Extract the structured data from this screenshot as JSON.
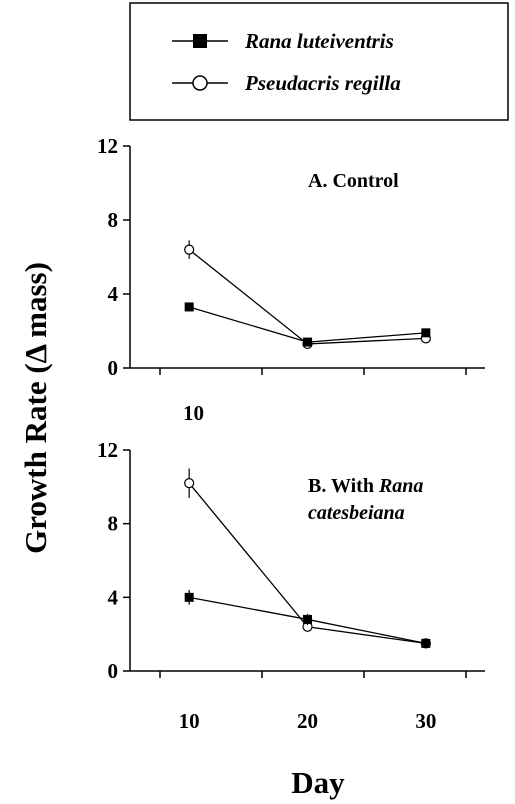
{
  "chart_data": [
    {
      "type": "line",
      "panel": "A",
      "title": "A. Control",
      "title_parts": [
        "A. Control"
      ],
      "x": [
        10,
        20,
        30
      ],
      "xlim": [
        5,
        35
      ],
      "ylim": [
        0,
        12
      ],
      "yticks": [
        "0",
        "4",
        "8",
        "12"
      ],
      "series": [
        {
          "name": "Rana luteiventris",
          "marker": "filled-square",
          "values": [
            3.3,
            1.4,
            1.9
          ],
          "errors": [
            0.2,
            0.1,
            0.1
          ]
        },
        {
          "name": "Pseudacris regilla",
          "marker": "open-circle",
          "values": [
            6.4,
            1.3,
            1.6
          ],
          "errors": [
            0.5,
            0.1,
            0.1
          ]
        }
      ]
    },
    {
      "type": "line",
      "panel": "B",
      "title": "B. With Rana catesbeiana",
      "title_parts": [
        "B. With ",
        "Rana",
        "catesbeiana"
      ],
      "x": [
        10,
        20,
        30
      ],
      "xlim": [
        5,
        35
      ],
      "ylim": [
        0,
        12
      ],
      "yticks": [
        "0",
        "4",
        "8",
        "12"
      ],
      "xticks": [
        "10",
        "20",
        "30"
      ],
      "series": [
        {
          "name": "Rana luteiventris",
          "marker": "filled-square",
          "values": [
            4.0,
            2.8,
            1.5
          ],
          "errors": [
            0.4,
            0.3,
            0.1
          ]
        },
        {
          "name": "Pseudacris regilla",
          "marker": "open-circle",
          "values": [
            10.2,
            2.4,
            1.5
          ],
          "errors": [
            0.8,
            0.2,
            0.1
          ]
        }
      ]
    }
  ],
  "axes": {
    "ylabel": "Growth Rate (Δ mass)",
    "xlabel": "Day"
  },
  "legend": {
    "position": "top",
    "entries": [
      "Rana luteiventris",
      "Pseudacris regilla"
    ]
  },
  "stray_label": "10"
}
